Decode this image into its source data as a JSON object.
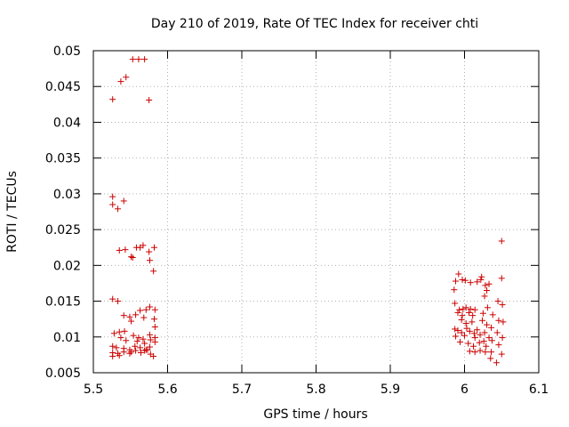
{
  "chart_data": {
    "type": "scatter",
    "title": "Day 210 of 2019, Rate Of TEC Index for receiver chti",
    "xlabel": "GPS time / hours",
    "ylabel": "ROTI / TECUs",
    "xlim": [
      5.5,
      6.1
    ],
    "ylim": [
      0.005,
      0.05
    ],
    "x_ticks": [
      5.5,
      5.6,
      5.7,
      5.8,
      5.9,
      6.0,
      6.1
    ],
    "x_tick_labels": [
      "5.5",
      "5.6",
      "5.7",
      "5.8",
      "5.9",
      "6",
      "6.1"
    ],
    "y_ticks": [
      0.005,
      0.01,
      0.015,
      0.02,
      0.025,
      0.03,
      0.035,
      0.04,
      0.045,
      0.05
    ],
    "y_tick_labels": [
      "0.005",
      "0.01",
      "0.015",
      "0.02",
      "0.025",
      "0.03",
      "0.035",
      "0.04",
      "0.045",
      "0.05"
    ],
    "grid": true,
    "marker": "+",
    "marker_color": "#cc0000",
    "series": [
      {
        "name": "chti",
        "points": [
          [
            5.553,
            0.0488
          ],
          [
            5.561,
            0.0488
          ],
          [
            5.569,
            0.0488
          ],
          [
            5.537,
            0.0457
          ],
          [
            5.544,
            0.0463
          ],
          [
            5.526,
            0.0432
          ],
          [
            5.575,
            0.0431
          ],
          [
            5.526,
            0.0296
          ],
          [
            5.526,
            0.0285
          ],
          [
            5.541,
            0.029
          ],
          [
            5.533,
            0.0279
          ],
          [
            5.558,
            0.0225
          ],
          [
            5.563,
            0.0225
          ],
          [
            5.567,
            0.0228
          ],
          [
            5.575,
            0.0219
          ],
          [
            5.582,
            0.0225
          ],
          [
            5.535,
            0.0221
          ],
          [
            5.543,
            0.0222
          ],
          [
            5.551,
            0.0212
          ],
          [
            5.553,
            0.0211
          ],
          [
            5.576,
            0.0207
          ],
          [
            5.581,
            0.0192
          ],
          [
            5.526,
            0.0153
          ],
          [
            5.533,
            0.015
          ],
          [
            5.571,
            0.0138
          ],
          [
            5.576,
            0.0142
          ],
          [
            5.583,
            0.0138
          ],
          [
            5.563,
            0.0137
          ],
          [
            5.541,
            0.013
          ],
          [
            5.549,
            0.0128
          ],
          [
            5.557,
            0.0131
          ],
          [
            5.568,
            0.0127
          ],
          [
            5.551,
            0.0122
          ],
          [
            5.582,
            0.0125
          ],
          [
            5.583,
            0.0114
          ],
          [
            5.528,
            0.0105
          ],
          [
            5.535,
            0.0107
          ],
          [
            5.542,
            0.0108
          ],
          [
            5.554,
            0.0102
          ],
          [
            5.561,
            0.0099
          ],
          [
            5.567,
            0.0097
          ],
          [
            5.576,
            0.0103
          ],
          [
            5.583,
            0.0099
          ],
          [
            5.537,
            0.0099
          ],
          [
            5.544,
            0.0095
          ],
          [
            5.559,
            0.0094
          ],
          [
            5.569,
            0.0091
          ],
          [
            5.577,
            0.0096
          ],
          [
            5.583,
            0.0093
          ],
          [
            5.526,
            0.0087
          ],
          [
            5.531,
            0.0085
          ],
          [
            5.541,
            0.0084
          ],
          [
            5.549,
            0.0082
          ],
          [
            5.556,
            0.0087
          ],
          [
            5.563,
            0.0085
          ],
          [
            5.571,
            0.0082
          ],
          [
            5.576,
            0.0086
          ],
          [
            5.526,
            0.0078
          ],
          [
            5.533,
            0.0077
          ],
          [
            5.541,
            0.0079
          ],
          [
            5.549,
            0.0077
          ],
          [
            5.557,
            0.0081
          ],
          [
            5.564,
            0.0078
          ],
          [
            5.569,
            0.0081
          ],
          [
            5.577,
            0.0076
          ],
          [
            5.581,
            0.0073
          ],
          [
            5.526,
            0.0073
          ],
          [
            5.535,
            0.0074
          ],
          [
            5.551,
            0.0079
          ],
          [
            5.573,
            0.0082
          ],
          [
            6.05,
            0.0234
          ],
          [
            5.992,
            0.0188
          ],
          [
            5.988,
            0.0178
          ],
          [
            5.997,
            0.018
          ],
          [
            6.001,
            0.0179
          ],
          [
            6.008,
            0.0176
          ],
          [
            6.017,
            0.0177
          ],
          [
            6.022,
            0.018
          ],
          [
            6.023,
            0.0184
          ],
          [
            6.05,
            0.0182
          ],
          [
            6.028,
            0.0172
          ],
          [
            6.033,
            0.0174
          ],
          [
            5.986,
            0.0166
          ],
          [
            6.03,
            0.0165
          ],
          [
            6.027,
            0.0157
          ],
          [
            6.045,
            0.015
          ],
          [
            5.987,
            0.0147
          ],
          [
            6.002,
            0.0141
          ],
          [
            6.008,
            0.0139
          ],
          [
            5.993,
            0.0138
          ],
          [
            5.998,
            0.0139
          ],
          [
            6.014,
            0.0138
          ],
          [
            6.031,
            0.0141
          ],
          [
            5.991,
            0.0134
          ],
          [
            6.006,
            0.0134
          ],
          [
            6.025,
            0.0133
          ],
          [
            6.051,
            0.0145
          ],
          [
            5.997,
            0.013
          ],
          [
            6.011,
            0.013
          ],
          [
            6.038,
            0.0131
          ],
          [
            5.996,
            0.0124
          ],
          [
            6.01,
            0.0121
          ],
          [
            6.024,
            0.0123
          ],
          [
            6.046,
            0.0123
          ],
          [
            6.052,
            0.0121
          ],
          [
            6.002,
            0.0119
          ],
          [
            6.03,
            0.0117
          ],
          [
            6.003,
            0.0112
          ],
          [
            6.017,
            0.011
          ],
          [
            6.036,
            0.0113
          ],
          [
            5.987,
            0.0111
          ],
          [
            5.991,
            0.0109
          ],
          [
            5.996,
            0.0106
          ],
          [
            6.007,
            0.0108
          ],
          [
            6.013,
            0.0105
          ],
          [
            6.021,
            0.0103
          ],
          [
            6.027,
            0.0106
          ],
          [
            6.044,
            0.0106
          ],
          [
            5.988,
            0.0101
          ],
          [
            6.0,
            0.0102
          ],
          [
            6.014,
            0.0099
          ],
          [
            6.033,
            0.0099
          ],
          [
            6.051,
            0.0099
          ],
          [
            5.994,
            0.0093
          ],
          [
            6.005,
            0.0091
          ],
          [
            6.02,
            0.0092
          ],
          [
            6.026,
            0.0094
          ],
          [
            6.037,
            0.0095
          ],
          [
            6.012,
            0.0087
          ],
          [
            6.029,
            0.0087
          ],
          [
            6.046,
            0.0089
          ],
          [
            6.007,
            0.008
          ],
          [
            6.014,
            0.0079
          ],
          [
            6.021,
            0.0081
          ],
          [
            6.028,
            0.0079
          ],
          [
            6.036,
            0.0079
          ],
          [
            6.05,
            0.0076
          ],
          [
            6.035,
            0.007
          ],
          [
            6.043,
            0.0064
          ]
        ]
      }
    ]
  }
}
